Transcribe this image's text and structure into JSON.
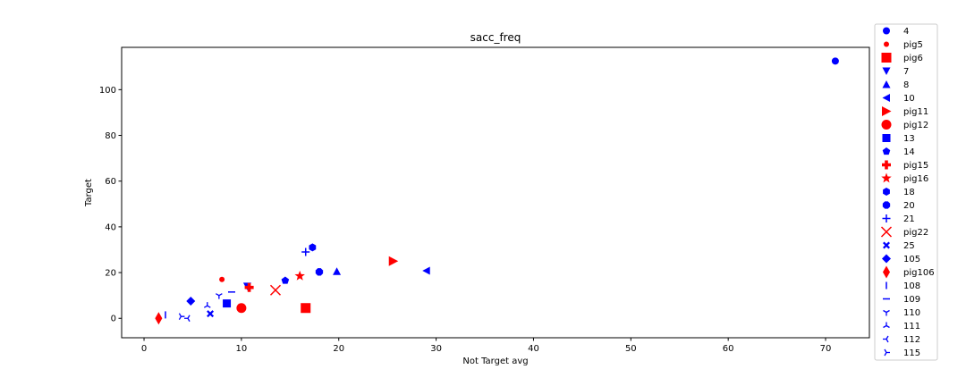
{
  "chart_data": {
    "type": "scatter",
    "title": "sacc_freq",
    "xlabel": "Not Target avg",
    "ylabel": "Target",
    "xlim": [
      -2.3,
      74.5
    ],
    "ylim": [
      -8.5,
      118.5
    ],
    "xticks": [
      0,
      10,
      20,
      30,
      40,
      50,
      60,
      70
    ],
    "yticks": [
      0,
      20,
      40,
      60,
      80,
      100
    ],
    "grid": false,
    "legend_position": "outside-right",
    "colors": {
      "blue": "#0000ff",
      "red": "#ff0000"
    },
    "series": [
      {
        "name": "4",
        "marker": "circle",
        "color": "blue",
        "x": 71.0,
        "y": 112.5
      },
      {
        "name": "pig5",
        "marker": "point",
        "color": "red",
        "x": 8.0,
        "y": 17.0
      },
      {
        "name": "pig6",
        "marker": "square-large",
        "color": "red",
        "x": 16.6,
        "y": 4.5
      },
      {
        "name": "7",
        "marker": "triangle-down",
        "color": "blue",
        "x": 10.6,
        "y": 14.0
      },
      {
        "name": "8",
        "marker": "triangle-up",
        "color": "blue",
        "x": 19.8,
        "y": 20.5
      },
      {
        "name": "10",
        "marker": "triangle-left",
        "color": "blue",
        "x": 29.0,
        "y": 20.8
      },
      {
        "name": "pig11",
        "marker": "triangle-right",
        "color": "red",
        "x": 25.6,
        "y": 25.0
      },
      {
        "name": "pig12",
        "marker": "circle-large",
        "color": "red",
        "x": 10.0,
        "y": 4.5
      },
      {
        "name": "13",
        "marker": "square",
        "color": "blue",
        "x": 8.5,
        "y": 6.5
      },
      {
        "name": "14",
        "marker": "pentagon",
        "color": "blue",
        "x": 14.5,
        "y": 16.5
      },
      {
        "name": "pig15",
        "marker": "plus-filled",
        "color": "red",
        "x": 10.8,
        "y": 13.5
      },
      {
        "name": "pig16",
        "marker": "star",
        "color": "red",
        "x": 16.0,
        "y": 18.5
      },
      {
        "name": "18",
        "marker": "hexagon",
        "color": "blue",
        "x": 17.3,
        "y": 31.0
      },
      {
        "name": "20",
        "marker": "octagon",
        "color": "blue",
        "x": 18.0,
        "y": 20.3
      },
      {
        "name": "21",
        "marker": "plus",
        "color": "blue",
        "x": 16.6,
        "y": 29.0
      },
      {
        "name": "pig22",
        "marker": "x",
        "color": "red",
        "x": 13.5,
        "y": 12.3
      },
      {
        "name": "25",
        "marker": "x-filled",
        "color": "blue",
        "x": 6.8,
        "y": 2.0
      },
      {
        "name": "105",
        "marker": "diamond",
        "color": "blue",
        "x": 4.8,
        "y": 7.5
      },
      {
        "name": "pig106",
        "marker": "thin-diamond",
        "color": "red",
        "x": 1.5,
        "y": 0.0
      },
      {
        "name": "108",
        "marker": "vline",
        "color": "blue",
        "x": 2.2,
        "y": 1.5
      },
      {
        "name": "109",
        "marker": "hline",
        "color": "blue",
        "x": 9.0,
        "y": 11.5
      },
      {
        "name": "110",
        "marker": "tri-down",
        "color": "blue",
        "x": 7.7,
        "y": 10.0
      },
      {
        "name": "111",
        "marker": "tri-up",
        "color": "blue",
        "x": 6.5,
        "y": 5.5
      },
      {
        "name": "112",
        "marker": "tri-left",
        "color": "blue",
        "x": 4.5,
        "y": 0.0
      },
      {
        "name": "115",
        "marker": "tri-right",
        "color": "blue",
        "x": 3.8,
        "y": 0.8
      }
    ]
  }
}
